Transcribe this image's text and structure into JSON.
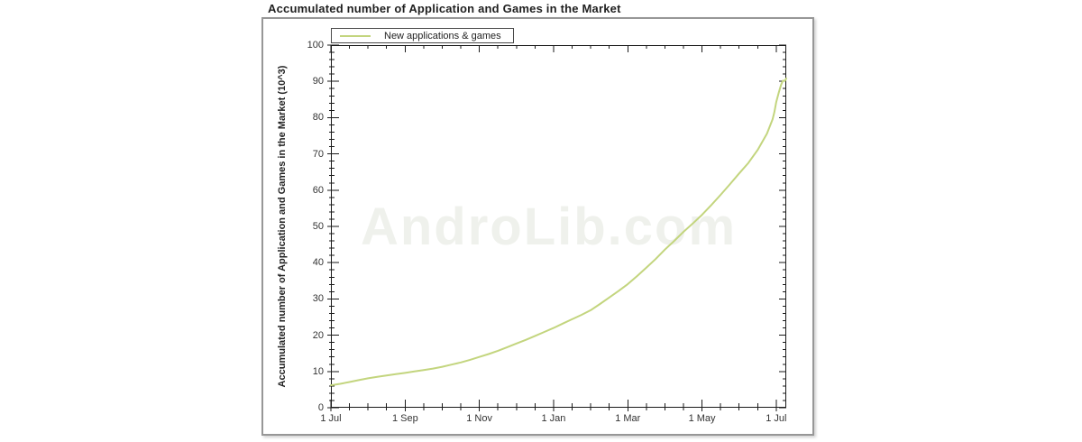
{
  "page": {
    "background": "#ffffff"
  },
  "chart_data": {
    "type": "line",
    "title": "Accumulated number of Application and Games in the Market",
    "ylabel": "Accumulated number of Application and Games in the Market (10^3)",
    "xlabel": "",
    "watermark": "AndroLib.com",
    "legend": {
      "label": "New applications & games",
      "position": "top-left"
    },
    "grid": false,
    "xlim": [
      0,
      12.27
    ],
    "ylim": [
      0,
      100
    ],
    "x_major_ticks": [
      0,
      2,
      4,
      6,
      8,
      10,
      12
    ],
    "x_major_labels": [
      "1 Jul",
      "1 Sep",
      "1 Nov",
      "1 Jan",
      "1 Mar",
      "1 May",
      "1 Jul"
    ],
    "x_minor_step": 0.5,
    "y_major_step": 10,
    "y_minor_step": 2,
    "y_major_labels": [
      "0",
      "10",
      "20",
      "30",
      "40",
      "50",
      "60",
      "70",
      "80",
      "90",
      "100"
    ],
    "colors": {
      "line": "#c3d57e",
      "axis": "#1a1a1a",
      "text": "#333333",
      "watermark": "#eff1ec",
      "panel_border": "#979797"
    },
    "series": [
      {
        "name": "New applications & games",
        "x_unit": "months since 1 Jul",
        "y_unit": "10^3 apps",
        "points": [
          [
            0,
            6.2
          ],
          [
            0.25,
            6.6
          ],
          [
            0.5,
            7.1
          ],
          [
            0.75,
            7.6
          ],
          [
            1,
            8.1
          ],
          [
            1.25,
            8.5
          ],
          [
            1.5,
            8.9
          ],
          [
            1.75,
            9.25
          ],
          [
            2,
            9.6
          ],
          [
            2.25,
            10.0
          ],
          [
            2.5,
            10.4
          ],
          [
            2.75,
            10.8
          ],
          [
            3,
            11.3
          ],
          [
            3.25,
            11.9
          ],
          [
            3.5,
            12.5
          ],
          [
            3.75,
            13.2
          ],
          [
            4,
            14.0
          ],
          [
            4.25,
            14.8
          ],
          [
            4.5,
            15.7
          ],
          [
            4.75,
            16.7
          ],
          [
            5,
            17.7
          ],
          [
            5.25,
            18.7
          ],
          [
            5.5,
            19.8
          ],
          [
            5.75,
            20.9
          ],
          [
            6,
            22.0
          ],
          [
            6.25,
            23.2
          ],
          [
            6.5,
            24.4
          ],
          [
            6.75,
            25.6
          ],
          [
            7,
            26.9
          ],
          [
            7.25,
            28.6
          ],
          [
            7.5,
            30.4
          ],
          [
            7.75,
            32.2
          ],
          [
            8,
            34.1
          ],
          [
            8.25,
            36.3
          ],
          [
            8.5,
            38.6
          ],
          [
            8.75,
            41.0
          ],
          [
            9,
            43.6
          ],
          [
            9.25,
            46.0
          ],
          [
            9.5,
            48.5
          ],
          [
            9.75,
            50.8
          ],
          [
            10,
            53.2
          ],
          [
            10.25,
            55.9
          ],
          [
            10.5,
            58.7
          ],
          [
            10.75,
            61.6
          ],
          [
            11,
            64.6
          ],
          [
            11.25,
            67.5
          ],
          [
            11.5,
            71.1
          ],
          [
            11.75,
            75.6
          ],
          [
            11.9,
            79.5
          ],
          [
            11.95,
            81.5
          ],
          [
            12,
            84.3
          ],
          [
            12.07,
            87.0
          ],
          [
            12.13,
            89.0
          ],
          [
            12.18,
            90.2
          ],
          [
            12.23,
            90.1
          ],
          [
            12.27,
            90.8
          ]
        ]
      }
    ]
  }
}
